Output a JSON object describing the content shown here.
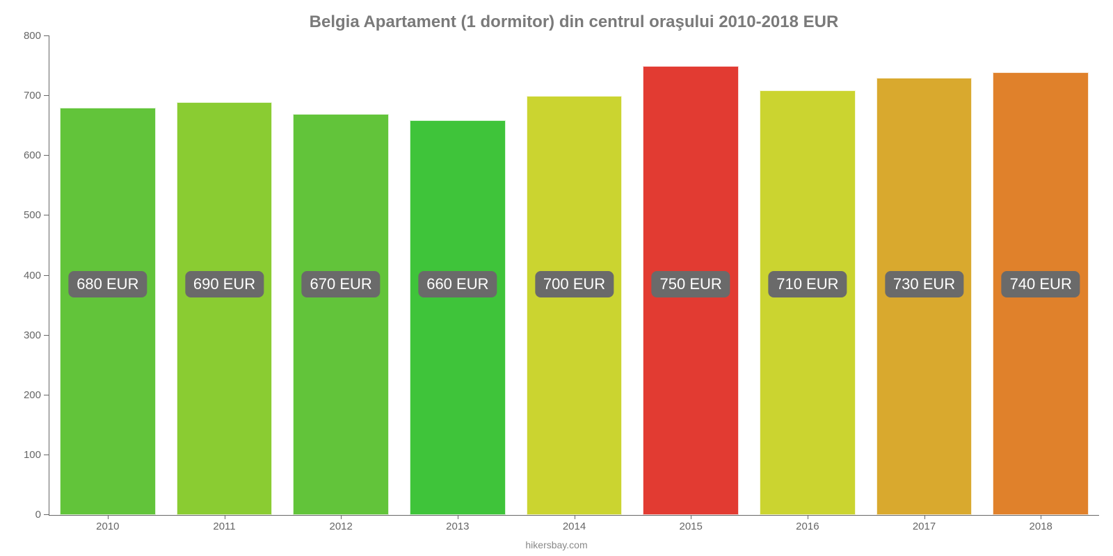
{
  "chart": {
    "type": "bar",
    "title": "Belgia Apartament (1 dormitor) din centrul oraşului 2010-2018 EUR",
    "title_color": "#7a7a7a",
    "title_fontsize": 24,
    "background_color": "#ffffff",
    "axis_color": "#666666",
    "tick_label_color": "#666666",
    "tick_label_fontsize": 15,
    "badge_bg": "#6a6a6a",
    "badge_text_color": "#ffffff",
    "badge_fontsize": 22,
    "currency": "EUR",
    "ylim": [
      0,
      800
    ],
    "yticks": [
      0,
      100,
      200,
      300,
      400,
      500,
      600,
      700,
      800
    ],
    "bar_width_ratio": 0.82,
    "categories": [
      "2010",
      "2011",
      "2012",
      "2013",
      "2014",
      "2015",
      "2016",
      "2017",
      "2018"
    ],
    "values": [
      680,
      690,
      670,
      660,
      700,
      750,
      710,
      730,
      740
    ],
    "value_labels": [
      "680 EUR",
      "690 EUR",
      "670 EUR",
      "660 EUR",
      "700 EUR",
      "750 EUR",
      "710 EUR",
      "730 EUR",
      "740 EUR"
    ],
    "bar_colors": [
      "#62c43a",
      "#8acc32",
      "#62c43a",
      "#3fc43a",
      "#cbd430",
      "#e23b32",
      "#cbd430",
      "#d9a92e",
      "#e0812b"
    ],
    "attribution": "hikersbay.com"
  }
}
